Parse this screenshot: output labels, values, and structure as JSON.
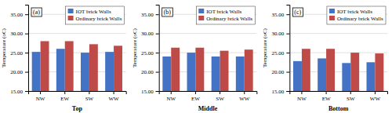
{
  "chart_data": [
    {
      "type": "bar",
      "xlabel": "Top",
      "ylabel": "Temperature (oC)",
      "annotations": [
        "(a)"
      ],
      "categories": [
        "NW",
        "EW",
        "SW",
        "WW"
      ],
      "series": [
        {
          "name": "IOT brick Walls",
          "color": "#4472C4",
          "values": [
            25.2,
            26.0,
            25.0,
            25.2
          ]
        },
        {
          "name": "Ordinary brick Walls",
          "color": "#BE4B48",
          "values": [
            28.0,
            28.0,
            27.2,
            26.8
          ]
        }
      ],
      "ylim": [
        15.0,
        37.5
      ],
      "yticks": [
        {
          "value": 15.0,
          "label": "15.00"
        },
        {
          "value": 20.0,
          "label": "20.00"
        },
        {
          "value": 25.0,
          "label": "25.00"
        },
        {
          "value": 30.0,
          "label": "30.00"
        },
        {
          "value": 35.0,
          "label": "35.00"
        }
      ],
      "grid": true,
      "legend": "upper right"
    },
    {
      "type": "bar",
      "xlabel": "Middle",
      "ylabel": "Temperature (oC)",
      "annotations": [
        "(b)"
      ],
      "categories": [
        "NW",
        "EW",
        "SW",
        "WW"
      ],
      "series": [
        {
          "name": "IOT brick Walls",
          "color": "#4472C4",
          "values": [
            24.0,
            25.0,
            24.0,
            24.0
          ]
        },
        {
          "name": "Ordinary brick Walls",
          "color": "#BE4B48",
          "values": [
            26.3,
            26.3,
            25.5,
            25.8
          ]
        }
      ],
      "ylim": [
        15.0,
        37.5
      ],
      "yticks": [
        {
          "value": 15.0,
          "label": "15.00"
        },
        {
          "value": 20.0,
          "label": "20.00"
        },
        {
          "value": 25.0,
          "label": "25.00"
        },
        {
          "value": 30.0,
          "label": "30.00"
        },
        {
          "value": 35.0,
          "label": "35.00"
        }
      ],
      "grid": true,
      "legend": "upper right"
    },
    {
      "type": "bar",
      "xlabel": "Bottom",
      "ylabel": "Temperature (oC)",
      "annotations": [
        "(c)"
      ],
      "categories": [
        "NW",
        "EW",
        "SW",
        "WW"
      ],
      "series": [
        {
          "name": "IOT brick Walls",
          "color": "#4472C4",
          "values": [
            22.8,
            23.5,
            22.3,
            22.5
          ]
        },
        {
          "name": "Ordinary brick Walls",
          "color": "#BE4B48",
          "values": [
            26.0,
            26.0,
            25.0,
            24.8
          ]
        }
      ],
      "ylim": [
        15.0,
        37.5
      ],
      "yticks": [
        {
          "value": 15.0,
          "label": "15.00"
        },
        {
          "value": 20.0,
          "label": "20.00"
        },
        {
          "value": 25.0,
          "label": "25.00"
        },
        {
          "value": 30.0,
          "label": "30.00"
        },
        {
          "value": 35.0,
          "label": "35.00"
        }
      ],
      "grid": true,
      "legend": "upper right"
    }
  ]
}
